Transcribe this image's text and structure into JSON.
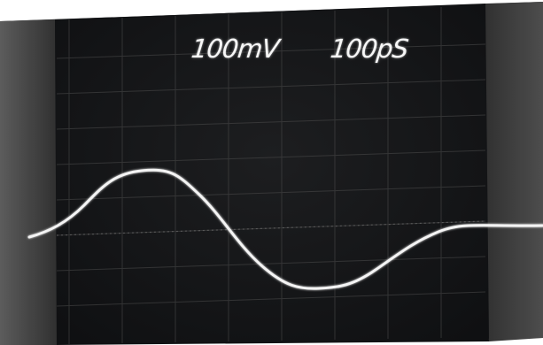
{
  "scope": {
    "volts_per_div": "100mV",
    "time_per_div": "100pS"
  },
  "colors": {
    "screen": "#111214",
    "bezel": "#3a3a3a",
    "trace": "#f4f4f4",
    "graticule": "#4a4a4a"
  }
}
